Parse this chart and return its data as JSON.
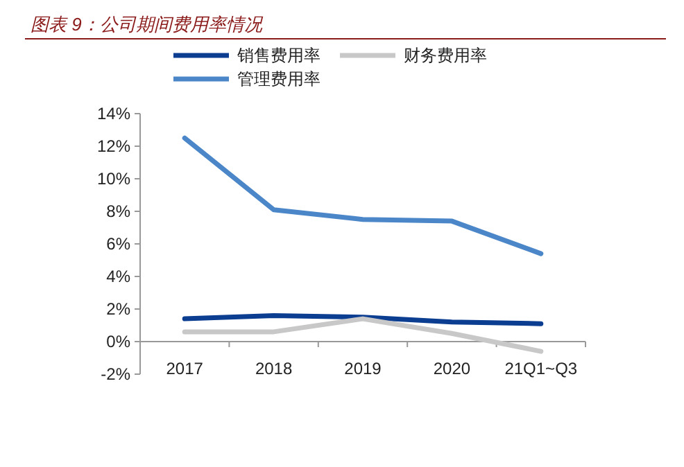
{
  "chart_data": {
    "type": "line",
    "title": "图表 9：公司期间费用率情况",
    "categories": [
      "2017",
      "2018",
      "2019",
      "2020",
      "21Q1~Q3"
    ],
    "series": [
      {
        "name": "销售费用率",
        "color": "#0b3d91",
        "values": [
          1.4,
          1.6,
          1.5,
          1.2,
          1.1
        ]
      },
      {
        "name": "财务费用率",
        "color": "#c8c8c8",
        "values": [
          0.6,
          0.6,
          1.4,
          0.5,
          -0.6
        ]
      },
      {
        "name": "管理费用率",
        "color": "#4a86c8",
        "values": [
          12.5,
          8.1,
          7.5,
          7.4,
          5.4
        ]
      }
    ],
    "ylim": [
      -2,
      14
    ],
    "yticks": [
      {
        "value": -2,
        "label": "-2%"
      },
      {
        "value": 0,
        "label": "0%"
      },
      {
        "value": 2,
        "label": "2%"
      },
      {
        "value": 4,
        "label": "4%"
      },
      {
        "value": 6,
        "label": "6%"
      },
      {
        "value": 8,
        "label": "8%"
      },
      {
        "value": 10,
        "label": "10%"
      },
      {
        "value": 12,
        "label": "12%"
      },
      {
        "value": 14,
        "label": "14%"
      }
    ],
    "grid": false,
    "legend": "top",
    "marker": "none",
    "line_style": "solid"
  }
}
